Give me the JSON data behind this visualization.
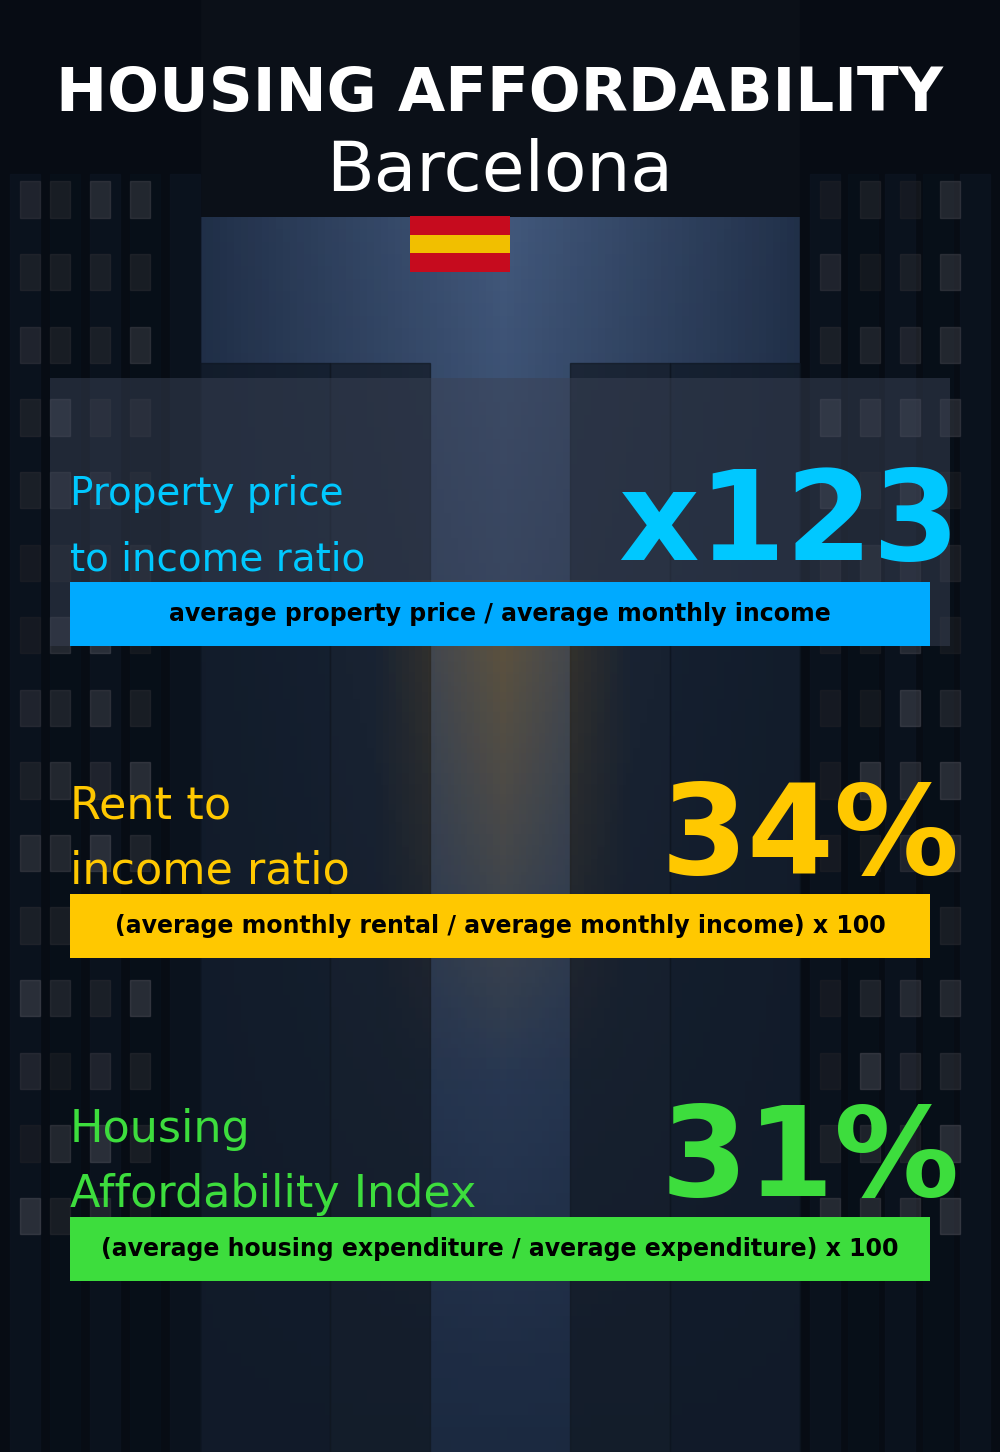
{
  "title_line1": "HOUSING AFFORDABILITY",
  "title_line2": "Barcelona",
  "sections": [
    {
      "label_line1": "Property price",
      "label_line2": "to income ratio",
      "value": "x123",
      "label_color": "#00c8ff",
      "value_color": "#00c8ff",
      "band_color": "#00aaff",
      "band_text": "average property price / average monthly income",
      "band_text_color": "#000000",
      "has_panel": true,
      "panel_color": "#404858",
      "panel_alpha": 0.55
    },
    {
      "label_line1": "Rent to",
      "label_line2": "income ratio",
      "value": "34%",
      "label_color": "#ffc800",
      "value_color": "#ffc800",
      "band_color": "#ffc800",
      "band_text": "(average monthly rental / average monthly income) x 100",
      "band_text_color": "#000000",
      "has_panel": false,
      "panel_color": "",
      "panel_alpha": 0
    },
    {
      "label_line1": "Housing",
      "label_line2": "Affordability Index",
      "value": "31%",
      "label_color": "#3ddd3d",
      "value_color": "#3ddd3d",
      "band_color": "#3ddd3d",
      "band_text": "(average housing expenditure / average expenditure) x 100",
      "band_text_color": "#000000",
      "has_panel": false,
      "panel_color": "",
      "panel_alpha": 0
    }
  ],
  "bg_color": "#0a0f18",
  "title_color": "#ffffff",
  "title_fontsize": 44,
  "subtitle_fontsize": 50,
  "label_fontsize": 28,
  "value_fontsize": 90,
  "band_fontsize": 17
}
